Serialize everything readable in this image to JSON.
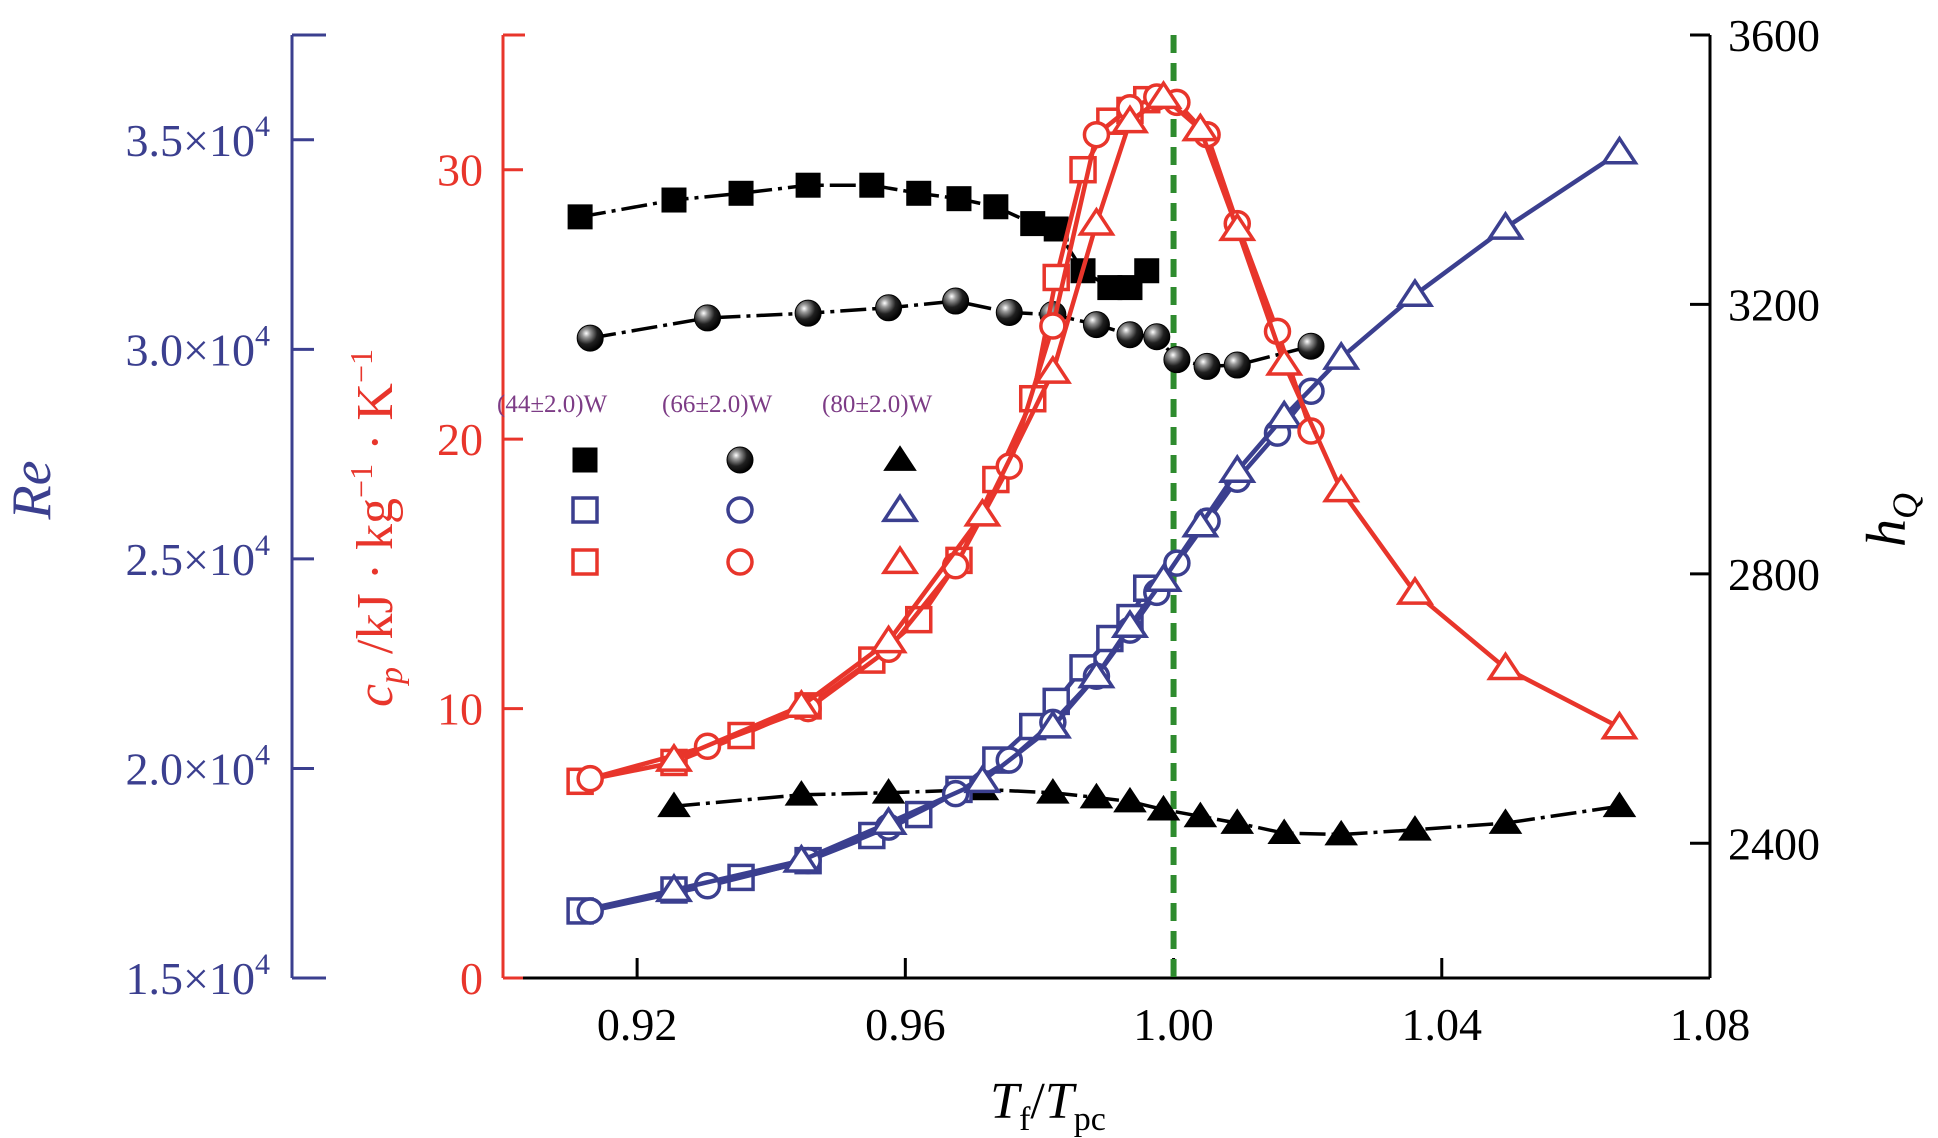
{
  "chart_data": {
    "type": "line",
    "title": "",
    "xlabel": {
      "main": "T",
      "sub1": "f",
      "sep": "/",
      "main2": "T",
      "sub2": "pc"
    },
    "xlim": [
      0.9,
      1.08
    ],
    "xticks": [
      0.92,
      0.96,
      1.0,
      1.04,
      1.08
    ],
    "xtick_labels": [
      "0.92",
      "0.96",
      "1.00",
      "1.04",
      "1.08"
    ],
    "grid": false,
    "reference_line": {
      "x": 1.0,
      "color": "#2e8b2e",
      "style": "dashed"
    },
    "axes": {
      "re": {
        "label": "Re",
        "color": "#3b3f8f",
        "lim": [
          15000,
          37500
        ],
        "ticks": [
          15000,
          20000,
          25000,
          30000,
          35000
        ],
        "tick_labels": [
          {
            "mantissa": "1.5×10",
            "exp": "4"
          },
          {
            "mantissa": "2.0×10",
            "exp": "4"
          },
          {
            "mantissa": "2.5×10",
            "exp": "4"
          },
          {
            "mantissa": "3.0×10",
            "exp": "4"
          },
          {
            "mantissa": "3.5×10",
            "exp": "4"
          }
        ]
      },
      "cp": {
        "label": {
          "c": "c",
          "p": "p",
          "rest1": " /kJ · kg",
          "e1": "−1",
          "rest2": " · K",
          "e2": "−1"
        },
        "color": "#e8352b",
        "lim": [
          0,
          35
        ],
        "ticks": [
          0,
          10,
          20,
          30
        ],
        "tick_labels": [
          "0",
          "10",
          "20",
          "30"
        ]
      },
      "hq": {
        "label": {
          "h": "h",
          "sub": "Q"
        },
        "color": "#000000",
        "lim": [
          2200,
          3600
        ],
        "ticks": [
          2400,
          2800,
          3200,
          3600
        ],
        "tick_labels": [
          "2400",
          "2800",
          "3200",
          "3600"
        ]
      }
    },
    "legend": {
      "position": "upper-left",
      "columns": [
        "(44±2.0)W",
        "(66±2.0)W",
        "(80±2.0)W"
      ]
    },
    "series": [
      {
        "name": "(44±2.0)W h_Q",
        "axis": "hq",
        "color": "#000000",
        "marker": "square",
        "filled": true,
        "x": [
          0.9115,
          0.9255,
          0.9355,
          0.9455,
          0.955,
          0.962,
          0.968,
          0.9735,
          0.979,
          0.9825,
          0.9865,
          0.9905,
          0.9935,
          0.996
        ],
        "y": [
          3330,
          3355,
          3365,
          3377,
          3377,
          3365,
          3357,
          3345,
          3320,
          3312,
          3250,
          3225,
          3225,
          3250
        ]
      },
      {
        "name": "(66±2.0)W h_Q",
        "axis": "hq",
        "color": "#000000",
        "marker": "sphere",
        "filled": true,
        "x": [
          0.913,
          0.9305,
          0.9455,
          0.9575,
          0.9675,
          0.9755,
          0.982,
          0.9885,
          0.9935,
          0.9975,
          1.0005,
          1.005,
          1.0095,
          1.0205
        ],
        "y": [
          3150,
          3180,
          3187,
          3195,
          3205,
          3188,
          3185,
          3170,
          3155,
          3152,
          3118,
          3108,
          3110,
          3138
        ]
      },
      {
        "name": "(80±2.0)W h_Q",
        "axis": "hq",
        "color": "#000000",
        "marker": "triangle",
        "filled": true,
        "x": [
          0.9255,
          0.9445,
          0.9575,
          0.9715,
          0.982,
          0.9885,
          0.9935,
          0.9985,
          1.004,
          1.0095,
          1.0165,
          1.025,
          1.036,
          1.0495,
          1.0665
        ],
        "y": [
          2455,
          2472,
          2475,
          2480,
          2475,
          2468,
          2462,
          2450,
          2440,
          2430,
          2415,
          2413,
          2420,
          2430,
          2455
        ]
      },
      {
        "name": "(44±2.0)W Re",
        "axis": "re",
        "color": "#3b3f8f",
        "marker": "square",
        "filled": false,
        "x": [
          0.9115,
          0.9255,
          0.9355,
          0.9455,
          0.955,
          0.962,
          0.968,
          0.9735,
          0.979,
          0.9825,
          0.9865,
          0.9905,
          0.9935,
          0.996
        ],
        "y": [
          16600,
          17100,
          17400,
          17800,
          18400,
          18900,
          19500,
          20200,
          21000,
          21600,
          22400,
          23100,
          23600,
          24300
        ]
      },
      {
        "name": "(66±2.0)W Re",
        "axis": "re",
        "color": "#3b3f8f",
        "marker": "circle",
        "filled": false,
        "x": [
          0.913,
          0.9305,
          0.9455,
          0.9575,
          0.9675,
          0.9755,
          0.982,
          0.9885,
          0.9935,
          0.9975,
          1.0005,
          1.005,
          1.0095,
          1.0155,
          1.0205
        ],
        "y": [
          16600,
          17200,
          17800,
          18600,
          19400,
          20200,
          21100,
          22200,
          23300,
          24200,
          24900,
          25900,
          26900,
          28000,
          29000
        ]
      },
      {
        "name": "(80±2.0)W Re",
        "axis": "re",
        "color": "#3b3f8f",
        "marker": "triangle",
        "filled": false,
        "x": [
          0.9255,
          0.9445,
          0.9575,
          0.9715,
          0.982,
          0.9885,
          0.9935,
          0.9985,
          1.004,
          1.0095,
          1.0165,
          1.025,
          1.036,
          1.0495,
          1.0665
        ],
        "y": [
          17100,
          17800,
          18700,
          19700,
          21000,
          22200,
          23400,
          24500,
          25800,
          27100,
          28400,
          29800,
          31300,
          32900,
          34700
        ]
      },
      {
        "name": "(44±2.0)W cp",
        "axis": "cp",
        "color": "#e8352b",
        "marker": "square",
        "filled": false,
        "x": [
          0.9115,
          0.9255,
          0.9355,
          0.9455,
          0.955,
          0.962,
          0.968,
          0.9735,
          0.979,
          0.9825,
          0.9865,
          0.9905,
          0.9935,
          0.996
        ],
        "y": [
          7.3,
          8.0,
          9.0,
          10.1,
          11.8,
          13.3,
          15.5,
          18.5,
          21.5,
          26.0,
          30.0,
          31.8,
          32.2,
          32.6
        ]
      },
      {
        "name": "(66±2.0)W cp",
        "axis": "cp",
        "color": "#e8352b",
        "marker": "circle",
        "filled": false,
        "x": [
          0.913,
          0.9305,
          0.9455,
          0.9575,
          0.9675,
          0.9755,
          0.982,
          0.9885,
          0.9935,
          0.9975,
          1.0005,
          1.005,
          1.0095,
          1.0155,
          1.0205
        ],
        "y": [
          7.4,
          8.6,
          10.0,
          12.2,
          15.3,
          19.0,
          24.2,
          31.3,
          32.3,
          32.7,
          32.5,
          31.3,
          28.0,
          24.0,
          20.3
        ]
      },
      {
        "name": "(80±2.0)W cp",
        "axis": "cp",
        "color": "#e8352b",
        "marker": "triangle",
        "filled": false,
        "x": [
          0.9255,
          0.9445,
          0.9575,
          0.9715,
          0.982,
          0.9885,
          0.9935,
          0.9985,
          1.004,
          1.0095,
          1.0165,
          1.025,
          1.036,
          1.0495,
          1.0665
        ],
        "y": [
          8.1,
          10.1,
          12.5,
          17.2,
          22.5,
          28.0,
          31.8,
          32.7,
          31.5,
          27.8,
          22.8,
          18.1,
          14.3,
          11.5,
          9.3
        ]
      }
    ]
  }
}
